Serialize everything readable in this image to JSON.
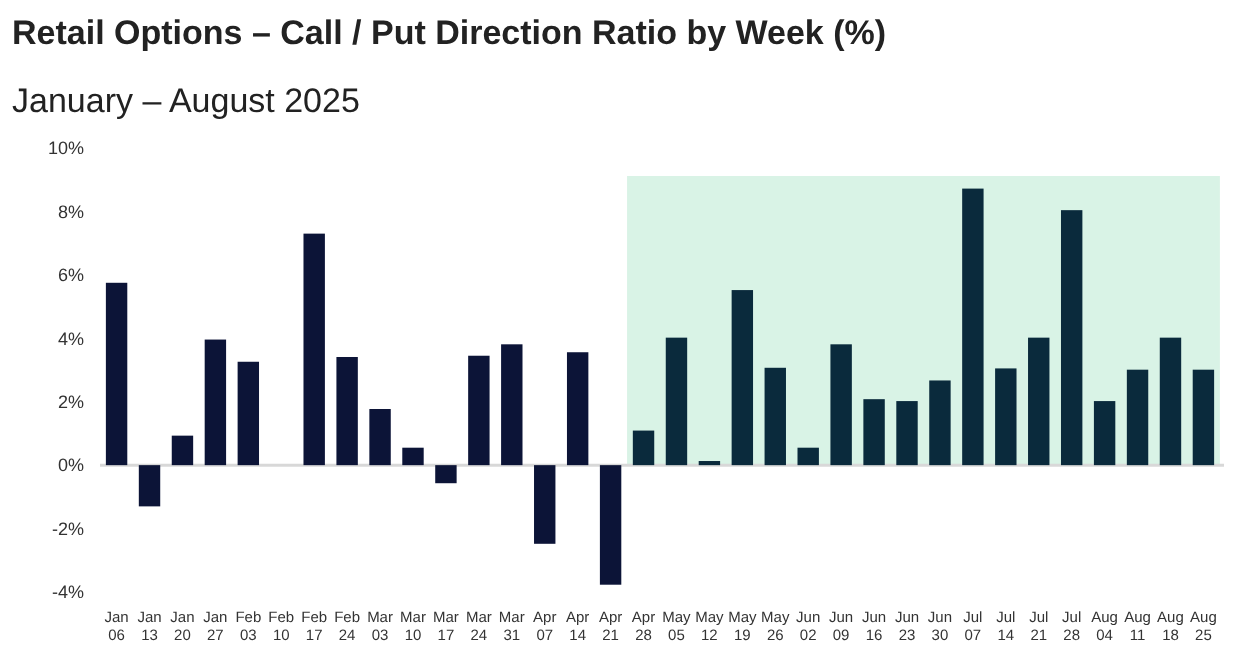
{
  "chart_data": {
    "type": "bar",
    "title": "Retail Options – Call / Put Direction Ratio by Week (%)",
    "subtitle": "January – August 2025",
    "categories": [
      "Jan 06",
      "Jan 13",
      "Jan 20",
      "Jan 27",
      "Feb 03",
      "Feb 10",
      "Feb 17",
      "Feb 24",
      "Mar 03",
      "Mar 10",
      "Mar 17",
      "Mar 24",
      "Mar 31",
      "Apr 07",
      "Apr 14",
      "Apr 21",
      "Apr 28",
      "May 05",
      "May 12",
      "May 19",
      "May 26",
      "Jun 02",
      "Jun 09",
      "Jun 16",
      "Jun 23",
      "Jun 30",
      "Jul 07",
      "Jul 14",
      "Jul 21",
      "Jul 28",
      "Aug 04",
      "Aug 11",
      "Aug 18",
      "Aug 25"
    ],
    "values": [
      5.75,
      -1.3,
      0.93,
      3.96,
      3.26,
      0,
      7.3,
      3.41,
      1.77,
      0.55,
      -0.57,
      3.45,
      3.81,
      -2.48,
      3.56,
      -3.77,
      1.09,
      4.02,
      0.13,
      5.52,
      3.07,
      0.55,
      3.81,
      2.08,
      2.02,
      2.67,
      8.72,
      3.05,
      4.02,
      8.04,
      2.02,
      3.01,
      4.02,
      3.01
    ],
    "colors": [
      "#0c1437",
      "#0c1437",
      "#0c1437",
      "#0c1437",
      "#0c1437",
      "#0c1437",
      "#0c1437",
      "#0c1437",
      "#0c1437",
      "#0c1437",
      "#0c1437",
      "#0c1437",
      "#0c1437",
      "#0c1437",
      "#0c1437",
      "#0c1437",
      "#0a2a3c",
      "#0a2a3c",
      "#0a2a3c",
      "#0a2a3c",
      "#0a2a3c",
      "#0a2a3c",
      "#0a2a3c",
      "#0a2a3c",
      "#0a2a3c",
      "#0a2a3c",
      "#0a2a3c",
      "#0a2a3c",
      "#0a2a3c",
      "#0a2a3c",
      "#0a2a3c",
      "#0a2a3c",
      "#0a2a3c",
      "#0a2a3c"
    ],
    "ylim": [
      -4,
      10
    ],
    "yticks": [
      {
        "value": -4,
        "label": "-4%"
      },
      {
        "value": -2,
        "label": "-2%"
      },
      {
        "value": 0,
        "label": "0%"
      },
      {
        "value": 2,
        "label": "2%"
      },
      {
        "value": 4,
        "label": "4%"
      },
      {
        "value": 6,
        "label": "6%"
      },
      {
        "value": 8,
        "label": "8%"
      },
      {
        "value": 10,
        "label": "10%"
      }
    ],
    "bands": [
      {
        "axis": "x",
        "from": "Apr 28",
        "to": "Aug 25",
        "color": "#d9f3e6"
      }
    ]
  }
}
